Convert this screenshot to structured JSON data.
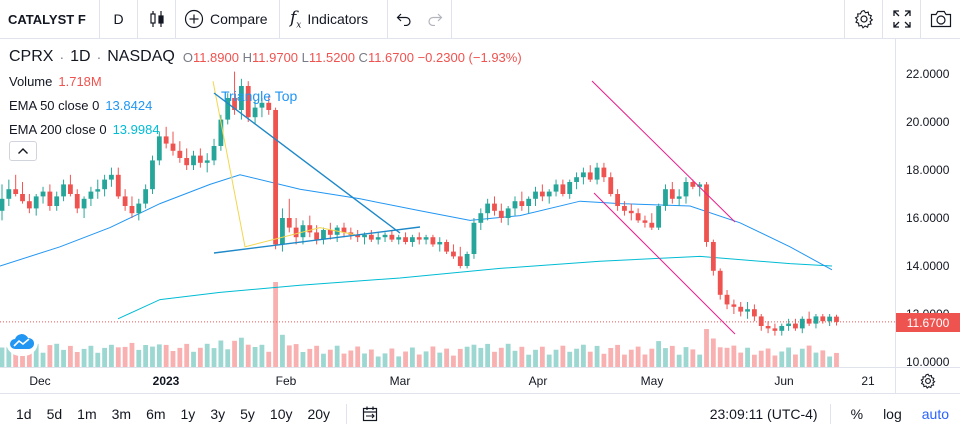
{
  "toolbar": {
    "symbol": "CATALYST F",
    "interval": "D",
    "chart_type_icon": "candles-icon",
    "compare_label": "Compare",
    "indicators_label": "Indicators",
    "right_icons": [
      "gear-icon",
      "fullscreen-icon",
      "camera-icon"
    ]
  },
  "legend": {
    "symbol": "CPRX",
    "interval": "1D",
    "exchange": "NASDAQ",
    "open_key": "O",
    "open": "11.8900",
    "high_key": "H",
    "high": "11.9700",
    "low_key": "L",
    "low": "11.5200",
    "close_key": "C",
    "close": "11.6700",
    "change": "−0.2300 (−1.93%)",
    "volume_label": "Volume",
    "volume_value": "1.718M",
    "ema50_label": "EMA 50 close 0",
    "ema50_value": "13.8424",
    "ema200_label": "EMA 200 close 0",
    "ema200_value": "13.9984"
  },
  "colors": {
    "up": "#26a69a",
    "down": "#ef5350",
    "ema50": "#2196f3",
    "ema200": "#00bcd4",
    "channel": "#e91e8c",
    "triangle": "#1e88c8",
    "accent": "#2962ff"
  },
  "drawings": {
    "pattern_label": "Triangle Top"
  },
  "price_axis": {
    "labels": [
      "22.0000",
      "20.0000",
      "18.0000",
      "16.0000",
      "14.0000",
      "12.0000",
      "10.0000"
    ],
    "last_price": "11.6700"
  },
  "time_axis": {
    "labels": [
      {
        "text": "Dec",
        "bold": false
      },
      {
        "text": "2023",
        "bold": true
      },
      {
        "text": "Feb",
        "bold": false
      },
      {
        "text": "Mar",
        "bold": false
      },
      {
        "text": "Apr",
        "bold": false
      },
      {
        "text": "May",
        "bold": false
      },
      {
        "text": "Jun",
        "bold": false
      },
      {
        "text": "21",
        "bold": false
      }
    ]
  },
  "bottom_bar": {
    "ranges": [
      "1d",
      "5d",
      "1m",
      "3m",
      "6m",
      "1y",
      "3y",
      "5y",
      "10y",
      "20y"
    ],
    "clock": "23:09:11 (UTC-4)",
    "percent_label": "%",
    "log_label": "log",
    "auto_label": "auto"
  },
  "chart_data": {
    "type": "candlestick",
    "series_name": "CPRX 1D",
    "x_ticks": [
      "Dec",
      "2023",
      "Feb",
      "Mar",
      "Apr",
      "May",
      "Jun",
      "21"
    ],
    "y_range": [
      9.6,
      22.7
    ],
    "y_ticks": [
      22,
      20,
      18,
      16,
      14,
      12,
      10
    ],
    "last_close": 11.67,
    "candles_approx": [
      [
        16.3,
        17.4,
        15.9,
        16.8
      ],
      [
        16.8,
        17.6,
        16.5,
        17.2
      ],
      [
        17.2,
        17.8,
        16.9,
        17.0
      ],
      [
        17.0,
        17.5,
        16.6,
        16.7
      ],
      [
        16.7,
        17.0,
        16.2,
        16.4
      ],
      [
        16.4,
        17.0,
        16.1,
        16.9
      ],
      [
        16.9,
        17.3,
        16.6,
        17.1
      ],
      [
        17.1,
        17.4,
        16.3,
        16.5
      ],
      [
        16.5,
        17.1,
        16.3,
        16.9
      ],
      [
        16.9,
        17.6,
        16.7,
        17.4
      ],
      [
        17.4,
        17.8,
        16.9,
        17.0
      ],
      [
        17.0,
        17.2,
        16.2,
        16.4
      ],
      [
        16.4,
        16.9,
        16.0,
        16.8
      ],
      [
        16.8,
        17.3,
        16.5,
        17.1
      ],
      [
        17.1,
        17.6,
        16.8,
        17.2
      ],
      [
        17.2,
        17.8,
        16.9,
        17.6
      ],
      [
        17.6,
        18.1,
        17.3,
        17.8
      ],
      [
        17.8,
        18.1,
        16.8,
        16.9
      ],
      [
        16.9,
        17.2,
        16.3,
        16.5
      ],
      [
        16.5,
        16.9,
        16.0,
        16.2
      ],
      [
        16.2,
        16.8,
        15.9,
        16.6
      ],
      [
        16.6,
        17.4,
        16.4,
        17.2
      ],
      [
        17.2,
        18.6,
        17.0,
        18.4
      ],
      [
        18.4,
        19.6,
        18.2,
        19.4
      ],
      [
        19.4,
        19.8,
        18.9,
        19.1
      ],
      [
        19.1,
        19.6,
        18.6,
        18.8
      ],
      [
        18.8,
        19.2,
        18.3,
        18.5
      ],
      [
        18.5,
        18.9,
        18.0,
        18.2
      ],
      [
        18.2,
        18.8,
        18.0,
        18.6
      ],
      [
        18.6,
        18.9,
        18.1,
        18.3
      ],
      [
        18.3,
        18.7,
        17.9,
        18.4
      ],
      [
        18.4,
        19.3,
        18.2,
        19.0
      ],
      [
        19.0,
        20.3,
        18.8,
        20.1
      ],
      [
        20.1,
        21.2,
        19.9,
        21.0
      ],
      [
        21.0,
        22.1,
        20.3,
        20.5
      ],
      [
        20.5,
        21.8,
        20.1,
        21.5
      ],
      [
        21.5,
        21.7,
        20.0,
        20.2
      ],
      [
        20.2,
        20.9,
        19.9,
        20.6
      ],
      [
        20.6,
        21.0,
        20.2,
        20.8
      ],
      [
        20.8,
        21.1,
        20.3,
        20.5
      ],
      [
        20.5,
        20.6,
        14.7,
        14.9
      ],
      [
        14.9,
        16.4,
        14.6,
        16.0
      ],
      [
        16.0,
        16.8,
        15.4,
        15.6
      ],
      [
        15.6,
        16.0,
        14.9,
        15.2
      ],
      [
        15.2,
        15.9,
        14.9,
        15.7
      ],
      [
        15.7,
        16.1,
        15.2,
        15.4
      ],
      [
        15.4,
        15.7,
        14.9,
        15.1
      ],
      [
        15.1,
        15.6,
        14.9,
        15.5
      ],
      [
        15.5,
        15.8,
        15.1,
        15.3
      ],
      [
        15.3,
        15.7,
        15.0,
        15.6
      ],
      [
        15.6,
        15.8,
        15.2,
        15.4
      ],
      [
        15.4,
        15.6,
        15.1,
        15.3
      ],
      [
        15.3,
        15.5,
        15.0,
        15.2
      ],
      [
        15.2,
        15.4,
        14.9,
        15.3
      ],
      [
        15.3,
        15.5,
        15.0,
        15.1
      ],
      [
        15.1,
        15.4,
        14.9,
        15.2
      ],
      [
        15.2,
        15.4,
        15.0,
        15.3
      ],
      [
        15.3,
        15.5,
        15.0,
        15.1
      ],
      [
        15.1,
        15.3,
        14.9,
        15.2
      ],
      [
        15.2,
        15.4,
        14.9,
        15.0
      ],
      [
        15.0,
        15.3,
        14.8,
        15.2
      ],
      [
        15.2,
        15.4,
        14.9,
        15.1
      ],
      [
        15.1,
        15.3,
        14.9,
        15.2
      ],
      [
        15.2,
        15.3,
        14.8,
        14.9
      ],
      [
        14.9,
        15.2,
        14.6,
        15.0
      ],
      [
        15.0,
        15.1,
        14.5,
        14.6
      ],
      [
        14.6,
        14.9,
        14.3,
        14.4
      ],
      [
        14.4,
        14.8,
        13.9,
        14.0
      ],
      [
        14.0,
        14.6,
        13.9,
        14.5
      ],
      [
        14.5,
        16.0,
        14.3,
        15.8
      ],
      [
        15.8,
        16.4,
        15.5,
        16.2
      ],
      [
        16.2,
        16.8,
        15.9,
        16.6
      ],
      [
        16.6,
        16.9,
        16.1,
        16.3
      ],
      [
        16.3,
        16.6,
        15.8,
        16.0
      ],
      [
        16.0,
        16.5,
        15.7,
        16.4
      ],
      [
        16.4,
        16.9,
        16.1,
        16.7
      ],
      [
        16.7,
        17.1,
        16.3,
        16.5
      ],
      [
        16.5,
        16.9,
        16.2,
        16.8
      ],
      [
        16.8,
        17.3,
        16.5,
        17.1
      ],
      [
        17.1,
        17.4,
        16.7,
        16.9
      ],
      [
        16.9,
        17.2,
        16.6,
        17.1
      ],
      [
        17.1,
        17.6,
        16.9,
        17.4
      ],
      [
        17.4,
        17.6,
        16.9,
        17.0
      ],
      [
        17.0,
        17.6,
        16.8,
        17.5
      ],
      [
        17.5,
        17.9,
        17.2,
        17.7
      ],
      [
        17.7,
        18.1,
        17.4,
        17.9
      ],
      [
        17.9,
        18.2,
        17.5,
        17.6
      ],
      [
        17.6,
        18.3,
        17.4,
        18.1
      ],
      [
        18.1,
        18.3,
        17.5,
        17.7
      ],
      [
        17.7,
        17.9,
        16.9,
        17.0
      ],
      [
        17.0,
        17.2,
        16.3,
        16.5
      ],
      [
        16.5,
        16.7,
        16.1,
        16.3
      ],
      [
        16.3,
        16.6,
        15.9,
        16.2
      ],
      [
        16.2,
        16.4,
        15.8,
        15.9
      ],
      [
        15.9,
        16.1,
        15.6,
        15.8
      ],
      [
        15.8,
        16.2,
        15.5,
        15.6
      ],
      [
        15.6,
        16.6,
        15.5,
        16.5
      ],
      [
        16.5,
        17.4,
        16.3,
        17.2
      ],
      [
        17.2,
        17.5,
        16.6,
        16.8
      ],
      [
        16.8,
        17.2,
        16.5,
        16.9
      ],
      [
        16.9,
        17.7,
        16.6,
        17.5
      ],
      [
        17.5,
        17.6,
        17.2,
        17.3
      ],
      [
        17.3,
        17.5,
        16.9,
        17.4
      ],
      [
        17.4,
        17.5,
        14.8,
        15.0
      ],
      [
        15.0,
        15.1,
        13.6,
        13.8
      ],
      [
        13.8,
        13.9,
        12.6,
        12.8
      ],
      [
        12.8,
        13.0,
        12.2,
        12.4
      ],
      [
        12.4,
        12.6,
        12.0,
        12.3
      ],
      [
        12.3,
        12.5,
        11.9,
        12.1
      ],
      [
        12.1,
        12.5,
        11.8,
        12.2
      ],
      [
        12.2,
        12.4,
        11.7,
        11.9
      ],
      [
        11.9,
        12.0,
        11.3,
        11.5
      ],
      [
        11.5,
        11.7,
        11.2,
        11.4
      ],
      [
        11.4,
        11.6,
        11.1,
        11.3
      ],
      [
        11.3,
        11.6,
        11.1,
        11.5
      ],
      [
        11.5,
        11.8,
        11.3,
        11.6
      ],
      [
        11.6,
        11.8,
        11.3,
        11.4
      ],
      [
        11.4,
        11.9,
        11.2,
        11.8
      ],
      [
        11.8,
        12.1,
        11.5,
        11.6
      ],
      [
        11.6,
        12.0,
        11.4,
        11.9
      ],
      [
        11.9,
        12.0,
        11.6,
        11.7
      ],
      [
        11.7,
        12.0,
        11.5,
        11.89
      ],
      [
        11.89,
        11.97,
        11.52,
        11.67
      ]
    ],
    "ema50_approx": [
      [
        0,
        14.0
      ],
      [
        60,
        14.8
      ],
      [
        110,
        15.6
      ],
      [
        160,
        16.6
      ],
      [
        210,
        17.4
      ],
      [
        240,
        17.8
      ],
      [
        300,
        17.2
      ],
      [
        360,
        16.8
      ],
      [
        420,
        16.3
      ],
      [
        470,
        15.9
      ],
      [
        520,
        16.1
      ],
      [
        580,
        16.7
      ],
      [
        620,
        16.6
      ],
      [
        690,
        16.5
      ],
      [
        740,
        15.8
      ],
      [
        790,
        14.8
      ],
      [
        832,
        13.84
      ]
    ],
    "ema200_approx": [
      [
        118,
        11.8
      ],
      [
        160,
        12.6
      ],
      [
        220,
        12.9
      ],
      [
        300,
        13.2
      ],
      [
        400,
        13.5
      ],
      [
        500,
        13.9
      ],
      [
        600,
        14.2
      ],
      [
        700,
        14.4
      ],
      [
        790,
        14.1
      ],
      [
        832,
        14.0
      ]
    ]
  }
}
